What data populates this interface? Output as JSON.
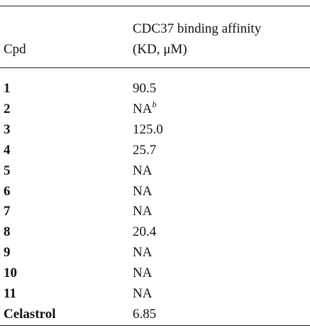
{
  "table": {
    "header": {
      "col1": "Cpd",
      "col2_line1": "CDC37 binding affinity",
      "col2_line2": "(KD, μM)"
    },
    "rows": [
      {
        "cpd": "1",
        "value": "90.5"
      },
      {
        "cpd": "2",
        "value": "NA",
        "footnote": "b"
      },
      {
        "cpd": "3",
        "value": "125.0"
      },
      {
        "cpd": "4",
        "value": "25.7"
      },
      {
        "cpd": "5",
        "value": "NA"
      },
      {
        "cpd": "6",
        "value": "NA"
      },
      {
        "cpd": "7",
        "value": "NA"
      },
      {
        "cpd": "8",
        "value": "20.4"
      },
      {
        "cpd": "9",
        "value": "NA"
      },
      {
        "cpd": "10",
        "value": "NA"
      },
      {
        "cpd": "11",
        "value": "NA"
      },
      {
        "cpd": "Celastrol",
        "value": "6.85"
      }
    ]
  }
}
